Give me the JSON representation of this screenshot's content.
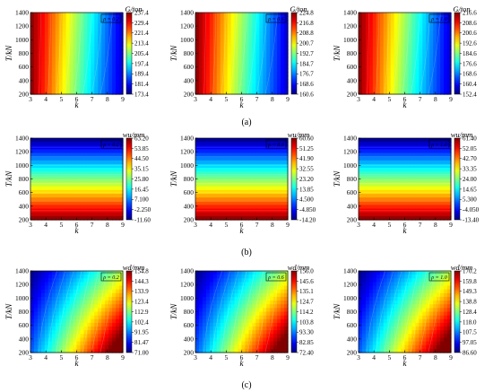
{
  "figure": {
    "rows": [
      {
        "label": "(a)"
      },
      {
        "label": "(b)"
      },
      {
        "label": "(c)"
      }
    ]
  },
  "chart_data": [
    {
      "type": "heatmap",
      "row": 0,
      "col": 0,
      "rho_label": "ρ = 0.2",
      "xlabel": "k",
      "ylabel": "T/kN",
      "x_ticks": [
        "3",
        "4",
        "5",
        "6",
        "7",
        "8",
        "9"
      ],
      "y_ticks": [
        "200",
        "400",
        "600",
        "800",
        "1000",
        "1200",
        "1400"
      ],
      "xlim": [
        3,
        9
      ],
      "ylim": [
        200,
        1400
      ],
      "colorbar_title": "G/ton",
      "colorbar_ticks": [
        "237.4",
        "229.4",
        "221.4",
        "213.4",
        "205.4",
        "197.4",
        "189.4",
        "181.4",
        "173.4"
      ],
      "pattern": "k",
      "reversed": true,
      "grid": false
    },
    {
      "type": "heatmap",
      "row": 0,
      "col": 1,
      "rho_label": "ρ = 0.6",
      "xlabel": "k",
      "ylabel": "T/kN",
      "x_ticks": [
        "3",
        "4",
        "5",
        "6",
        "7",
        "8",
        "9"
      ],
      "y_ticks": [
        "200",
        "400",
        "600",
        "800",
        "1000",
        "1200",
        "1400"
      ],
      "xlim": [
        3,
        9
      ],
      "ylim": [
        200,
        1400
      ],
      "colorbar_title": "G/ton",
      "colorbar_ticks": [
        "224.8",
        "216.8",
        "208.8",
        "200.7",
        "192.7",
        "184.7",
        "176.7",
        "168.6",
        "160.6"
      ],
      "pattern": "k",
      "reversed": true,
      "grid": false
    },
    {
      "type": "heatmap",
      "row": 0,
      "col": 2,
      "rho_label": "ρ = 1.0",
      "xlabel": "k",
      "ylabel": "T/kN",
      "x_ticks": [
        "3",
        "4",
        "5",
        "6",
        "7",
        "8",
        "9"
      ],
      "y_ticks": [
        "200",
        "400",
        "600",
        "800",
        "1000",
        "1200",
        "1400"
      ],
      "xlim": [
        3,
        9
      ],
      "ylim": [
        200,
        1400
      ],
      "colorbar_title": "G/ton",
      "colorbar_ticks": [
        "216.6",
        "208.6",
        "200.6",
        "192.6",
        "184.6",
        "176.6",
        "168.6",
        "160.4",
        "152.4"
      ],
      "pattern": "k",
      "reversed": true,
      "grid": false
    },
    {
      "type": "heatmap",
      "row": 1,
      "col": 0,
      "rho_label": "ρ = 0.2",
      "xlabel": "k",
      "ylabel": "T/kN",
      "x_ticks": [
        "3",
        "4",
        "5",
        "6",
        "7",
        "8",
        "9"
      ],
      "y_ticks": [
        "200",
        "400",
        "600",
        "800",
        "1000",
        "1200",
        "1400"
      ],
      "xlim": [
        3,
        9
      ],
      "ylim": [
        200,
        1400
      ],
      "colorbar_title": "wu/mm",
      "colorbar_ticks": [
        "63.20",
        "53.85",
        "44.50",
        "35.15",
        "25.80",
        "16.45",
        "7.100",
        "-2.250",
        "-11.60"
      ],
      "pattern": "t",
      "reversed": true,
      "grid": false
    },
    {
      "type": "heatmap",
      "row": 1,
      "col": 1,
      "rho_label": "ρ = 0.6",
      "xlabel": "k",
      "ylabel": "T/kN",
      "x_ticks": [
        "3",
        "4",
        "5",
        "6",
        "7",
        "8",
        "9"
      ],
      "y_ticks": [
        "200",
        "400",
        "600",
        "800",
        "1000",
        "1200",
        "1400"
      ],
      "xlim": [
        3,
        9
      ],
      "ylim": [
        200,
        1400
      ],
      "colorbar_title": "wu/mm",
      "colorbar_ticks": [
        "60.60",
        "51.25",
        "41.90",
        "32.55",
        "23.20",
        "13.85",
        "4.500",
        "-4.850",
        "-14.20"
      ],
      "pattern": "t",
      "reversed": true,
      "grid": false
    },
    {
      "type": "heatmap",
      "row": 1,
      "col": 2,
      "rho_label": "ρ = 1.0",
      "xlabel": "k",
      "ylabel": "T/kN",
      "x_ticks": [
        "3",
        "4",
        "5",
        "6",
        "7",
        "8",
        "9"
      ],
      "y_ticks": [
        "200",
        "400",
        "600",
        "800",
        "1000",
        "1200",
        "1400"
      ],
      "xlim": [
        3,
        9
      ],
      "ylim": [
        200,
        1400
      ],
      "colorbar_title": "wu/mm",
      "colorbar_ticks": [
        "61.40",
        "52.05",
        "42.70",
        "33.35",
        "24.00",
        "14.65",
        "5.300",
        "-4.050",
        "-13.40"
      ],
      "pattern": "t",
      "reversed": true,
      "grid": false
    },
    {
      "type": "heatmap",
      "row": 2,
      "col": 0,
      "rho_label": "ρ = 0.2",
      "xlabel": "k",
      "ylabel": "T/kN",
      "x_ticks": [
        "3",
        "4",
        "5",
        "6",
        "7",
        "8",
        "9"
      ],
      "y_ticks": [
        "200",
        "400",
        "600",
        "800",
        "1000",
        "1200",
        "1400"
      ],
      "xlim": [
        3,
        9
      ],
      "ylim": [
        200,
        1400
      ],
      "colorbar_title": "wd/mm",
      "colorbar_ticks": [
        "154.8",
        "144.3",
        "133.9",
        "123.4",
        "112.9",
        "102.4",
        "91.95",
        "81.47",
        "71.00"
      ],
      "pattern": "kt",
      "reversed": false,
      "grid": false
    },
    {
      "type": "heatmap",
      "row": 2,
      "col": 1,
      "rho_label": "ρ = 0.6",
      "xlabel": "k",
      "ylabel": "T/kN",
      "x_ticks": [
        "3",
        "4",
        "5",
        "6",
        "7",
        "8",
        "9"
      ],
      "y_ticks": [
        "200",
        "400",
        "600",
        "800",
        "1000",
        "1200",
        "1400"
      ],
      "xlim": [
        3,
        9
      ],
      "ylim": [
        200,
        1400
      ],
      "colorbar_title": "wd/mm",
      "colorbar_ticks": [
        "156.0",
        "145.6",
        "135.1",
        "124.7",
        "114.2",
        "103.8",
        "93.30",
        "82.85",
        "72.40"
      ],
      "pattern": "kt",
      "reversed": false,
      "grid": false
    },
    {
      "type": "heatmap",
      "row": 2,
      "col": 2,
      "rho_label": "ρ = 1.0",
      "xlabel": "k",
      "ylabel": "T/kN",
      "x_ticks": [
        "3",
        "4",
        "5",
        "6",
        "7",
        "8",
        "9"
      ],
      "y_ticks": [
        "200",
        "400",
        "600",
        "800",
        "1000",
        "1200",
        "1400"
      ],
      "xlim": [
        3,
        9
      ],
      "ylim": [
        200,
        1400
      ],
      "colorbar_title": "wd/mm",
      "colorbar_ticks": [
        "170.2",
        "159.8",
        "149.3",
        "138.8",
        "128.4",
        "118.0",
        "107.5",
        "97.05",
        "86.60"
      ],
      "pattern": "kt",
      "reversed": false,
      "grid": false
    }
  ]
}
